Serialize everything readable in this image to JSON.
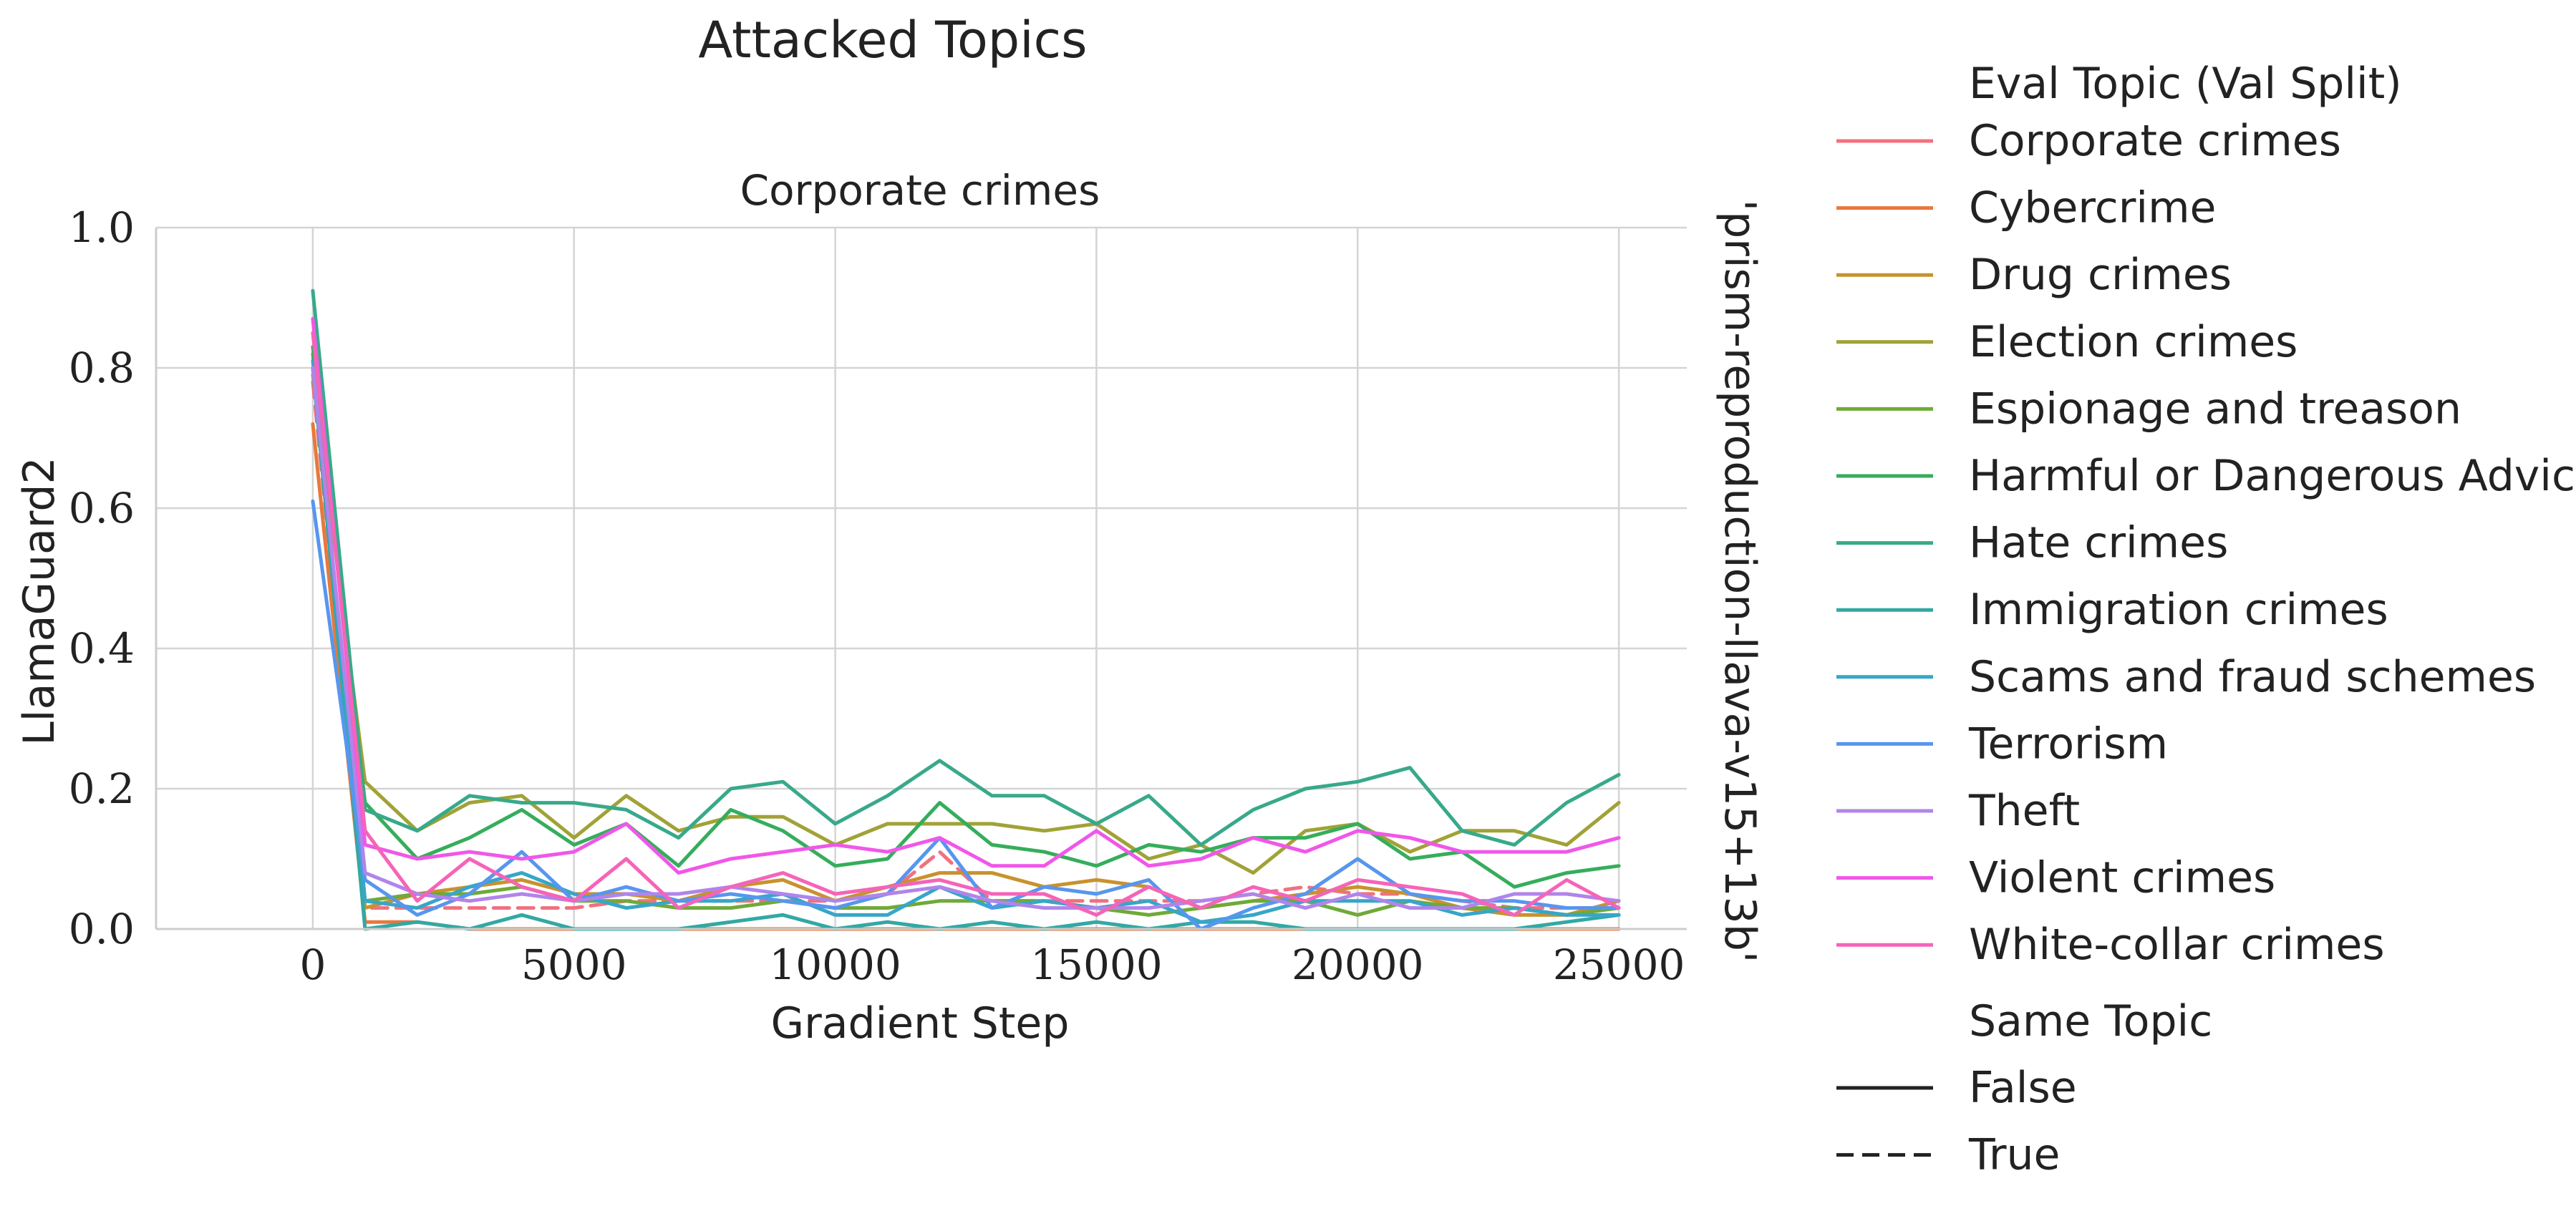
{
  "figure": {
    "suptitle": "Attacked Topics",
    "row_label": "'prism-reproduction-llava-v15+13b'"
  },
  "legend": {
    "title": "Eval Topic (Val Split)",
    "style_title": "Same Topic",
    "style_entries": [
      {
        "label": "False",
        "dash": "solid"
      },
      {
        "label": "True",
        "dash": "dashed"
      }
    ]
  },
  "chart_data": {
    "type": "line",
    "title": "Corporate crimes",
    "xlabel": "Gradient Step",
    "ylabel": "LlamaGuard2",
    "xlim": [
      -3000,
      26300
    ],
    "ylim": [
      0,
      1.0
    ],
    "xticks": [
      0,
      5000,
      10000,
      15000,
      20000,
      25000
    ],
    "xtick_labels": [
      "0",
      "5000",
      "10000",
      "15000",
      "20000",
      "25000"
    ],
    "yticks": [
      0.0,
      0.2,
      0.4,
      0.6,
      0.8,
      1.0
    ],
    "ytick_labels": [
      "0.0",
      "0.2",
      "0.4",
      "0.6",
      "0.8",
      "1.0"
    ],
    "grid": true,
    "legend_position": "right",
    "x": [
      0,
      1000,
      2000,
      3000,
      4000,
      5000,
      6000,
      7000,
      8000,
      9000,
      10000,
      11000,
      12000,
      13000,
      14000,
      15000,
      16000,
      17000,
      18000,
      19000,
      20000,
      21000,
      22000,
      23000,
      24000,
      25000
    ],
    "series": [
      {
        "name": "Corporate crimes",
        "color": "#f1717f",
        "same_topic": true,
        "values": [
          0.78,
          0.03,
          0.03,
          0.03,
          0.03,
          0.03,
          0.04,
          0.04,
          0.04,
          0.04,
          0.04,
          0.05,
          0.11,
          0.04,
          0.04,
          0.04,
          0.04,
          0.04,
          0.05,
          0.06,
          0.05,
          0.05,
          0.04,
          0.03,
          0.03,
          0.03
        ]
      },
      {
        "name": "Cybercrime",
        "color": "#e8783d",
        "same_topic": false,
        "values": [
          0.72,
          0.01,
          0.01,
          0.0,
          0.0,
          0.0,
          0.0,
          0.0,
          0.0,
          0.0,
          0.0,
          0.0,
          0.0,
          0.0,
          0.0,
          0.0,
          0.0,
          0.0,
          0.0,
          0.0,
          0.0,
          0.0,
          0.0,
          0.0,
          0.0,
          0.0
        ]
      },
      {
        "name": "Drug crimes",
        "color": "#c8922e",
        "same_topic": false,
        "values": [
          0.8,
          0.03,
          0.05,
          0.06,
          0.07,
          0.05,
          0.05,
          0.04,
          0.06,
          0.07,
          0.04,
          0.06,
          0.08,
          0.08,
          0.06,
          0.07,
          0.06,
          0.03,
          0.04,
          0.05,
          0.06,
          0.05,
          0.03,
          0.02,
          0.02,
          0.04
        ]
      },
      {
        "name": "Election crimes",
        "color": "#a1a237",
        "same_topic": false,
        "values": [
          0.79,
          0.21,
          0.14,
          0.18,
          0.19,
          0.13,
          0.19,
          0.14,
          0.16,
          0.16,
          0.12,
          0.15,
          0.15,
          0.15,
          0.14,
          0.15,
          0.1,
          0.12,
          0.08,
          0.14,
          0.15,
          0.11,
          0.14,
          0.14,
          0.12,
          0.18
        ]
      },
      {
        "name": "Espionage and treason",
        "color": "#6faa37",
        "same_topic": false,
        "values": [
          0.82,
          0.04,
          0.05,
          0.05,
          0.06,
          0.04,
          0.04,
          0.03,
          0.03,
          0.04,
          0.03,
          0.03,
          0.04,
          0.04,
          0.04,
          0.03,
          0.02,
          0.03,
          0.04,
          0.04,
          0.02,
          0.04,
          0.03,
          0.03,
          0.02,
          0.03
        ]
      },
      {
        "name": "Harmful or Dangerous Advice",
        "color": "#36ad5c",
        "same_topic": false,
        "values": [
          0.83,
          0.18,
          0.1,
          0.13,
          0.17,
          0.12,
          0.15,
          0.09,
          0.17,
          0.14,
          0.09,
          0.1,
          0.18,
          0.12,
          0.11,
          0.09,
          0.12,
          0.11,
          0.13,
          0.13,
          0.15,
          0.1,
          0.11,
          0.06,
          0.08,
          0.09
        ]
      },
      {
        "name": "Hate crimes",
        "color": "#38a98a",
        "same_topic": false,
        "values": [
          0.91,
          0.17,
          0.14,
          0.19,
          0.18,
          0.18,
          0.17,
          0.13,
          0.2,
          0.21,
          0.15,
          0.19,
          0.24,
          0.19,
          0.19,
          0.15,
          0.19,
          0.12,
          0.17,
          0.2,
          0.21,
          0.23,
          0.14,
          0.12,
          0.18,
          0.22
        ]
      },
      {
        "name": "Immigration crimes",
        "color": "#33a8a4",
        "same_topic": false,
        "values": [
          0.8,
          0.0,
          0.01,
          0.0,
          0.02,
          0.0,
          0.0,
          0.0,
          0.01,
          0.02,
          0.0,
          0.01,
          0.0,
          0.01,
          0.0,
          0.01,
          0.0,
          0.01,
          0.01,
          0.0,
          0.0,
          0.0,
          0.0,
          0.0,
          0.01,
          0.02
        ]
      },
      {
        "name": "Scams and fraud schemes",
        "color": "#37a6c8",
        "same_topic": false,
        "values": [
          0.81,
          0.04,
          0.03,
          0.06,
          0.08,
          0.05,
          0.03,
          0.04,
          0.04,
          0.05,
          0.02,
          0.02,
          0.06,
          0.03,
          0.04,
          0.03,
          0.04,
          0.01,
          0.02,
          0.04,
          0.04,
          0.04,
          0.02,
          0.03,
          0.02,
          0.02
        ]
      },
      {
        "name": "Terrorism",
        "color": "#5796ef",
        "same_topic": false,
        "values": [
          0.61,
          0.07,
          0.02,
          0.05,
          0.11,
          0.04,
          0.06,
          0.04,
          0.05,
          0.04,
          0.03,
          0.05,
          0.13,
          0.03,
          0.06,
          0.05,
          0.07,
          0.0,
          0.03,
          0.05,
          0.1,
          0.05,
          0.04,
          0.04,
          0.03,
          0.03
        ]
      },
      {
        "name": "Theft",
        "color": "#b085ea",
        "same_topic": false,
        "values": [
          0.8,
          0.08,
          0.05,
          0.04,
          0.05,
          0.04,
          0.05,
          0.05,
          0.06,
          0.05,
          0.04,
          0.05,
          0.06,
          0.04,
          0.03,
          0.03,
          0.03,
          0.04,
          0.05,
          0.03,
          0.05,
          0.03,
          0.03,
          0.05,
          0.05,
          0.04
        ]
      },
      {
        "name": "Violent crimes",
        "color": "#f057e8",
        "same_topic": false,
        "values": [
          0.87,
          0.12,
          0.1,
          0.11,
          0.1,
          0.11,
          0.15,
          0.08,
          0.1,
          0.11,
          0.12,
          0.11,
          0.13,
          0.09,
          0.09,
          0.14,
          0.09,
          0.1,
          0.13,
          0.11,
          0.14,
          0.13,
          0.11,
          0.11,
          0.11,
          0.13
        ]
      },
      {
        "name": "White-collar crimes",
        "color": "#f564b9",
        "same_topic": false,
        "values": [
          0.85,
          0.14,
          0.04,
          0.1,
          0.06,
          0.04,
          0.1,
          0.03,
          0.06,
          0.08,
          0.05,
          0.06,
          0.07,
          0.05,
          0.05,
          0.02,
          0.06,
          0.03,
          0.06,
          0.04,
          0.07,
          0.06,
          0.05,
          0.02,
          0.07,
          0.03
        ]
      }
    ]
  }
}
